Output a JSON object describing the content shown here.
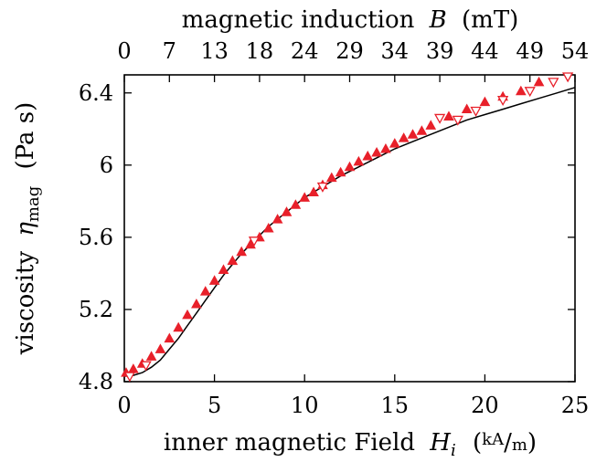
{
  "chart_data": {
    "type": "scatter",
    "title": "",
    "xlabel": "inner magnetic Field",
    "xlabel_symbol": "H",
    "xlabel_subscript": "i",
    "xlabel_unit_open": "(",
    "xlabel_unit_num": "kA",
    "xlabel_unit_sep": "/",
    "xlabel_unit_den": "m",
    "xlabel_unit_close": ")",
    "ylabel": "viscosity",
    "ylabel_symbol": "η",
    "ylabel_subscript": "mag",
    "ylabel_unit": "(Pa s)",
    "x2label": "magnetic induction",
    "x2label_symbol": "B",
    "x2label_unit": "(mT)",
    "xlim": [
      0,
      25
    ],
    "ylim": [
      4.8,
      6.5
    ],
    "xticks": [
      0,
      5,
      10,
      15,
      20,
      25
    ],
    "xtick_labels": [
      "0",
      "5",
      "10",
      "15",
      "20",
      "25"
    ],
    "yticks": [
      4.8,
      5.2,
      5.6,
      6.0,
      6.4
    ],
    "ytick_labels": [
      "4.8",
      "5.2",
      "5.6",
      "6",
      "6.4"
    ],
    "x2tick_labels": [
      "0",
      "7",
      "13",
      "18",
      "24",
      "29",
      "34",
      "39",
      "44",
      "49",
      "54"
    ],
    "x2tick_positions": [
      0,
      2.5,
      5,
      7.5,
      10,
      12.5,
      15,
      17.5,
      20,
      22.5,
      25
    ],
    "series": [
      {
        "name": "filled triangles",
        "marker": "triangle-up-filled",
        "color": "#e8202a",
        "x": [
          0.1,
          0.5,
          1.0,
          1.5,
          2.0,
          2.5,
          3.0,
          3.5,
          4.0,
          4.5,
          5.0,
          5.5,
          6.0,
          6.5,
          7.0,
          7.5,
          8.0,
          8.5,
          9.0,
          9.5,
          10.0,
          10.5,
          11.0,
          11.5,
          12.0,
          12.5,
          13.0,
          13.5,
          14.0,
          14.5,
          15.0,
          15.5,
          16.0,
          16.5,
          17.0,
          18.0,
          19.0,
          20.0,
          21.0,
          22.0,
          23.0
        ],
        "y": [
          4.85,
          4.87,
          4.9,
          4.94,
          4.98,
          5.04,
          5.1,
          5.17,
          5.23,
          5.3,
          5.36,
          5.42,
          5.47,
          5.52,
          5.56,
          5.6,
          5.65,
          5.7,
          5.74,
          5.78,
          5.82,
          5.85,
          5.89,
          5.93,
          5.96,
          5.99,
          6.02,
          6.05,
          6.07,
          6.09,
          6.12,
          6.15,
          6.17,
          6.19,
          6.22,
          6.27,
          6.31,
          6.35,
          6.38,
          6.41,
          6.46
        ]
      },
      {
        "name": "open triangles",
        "marker": "triangle-down-open",
        "color": "#e8202a",
        "x": [
          0.3,
          1.2,
          7.2,
          11.0,
          17.5,
          18.5,
          19.5,
          21.0,
          22.5,
          23.8,
          24.6
        ],
        "y": [
          4.83,
          4.89,
          5.58,
          5.88,
          6.26,
          6.25,
          6.3,
          6.36,
          6.41,
          6.46,
          6.49
        ]
      }
    ],
    "fit": {
      "name": "model curve",
      "color": "#000000",
      "x": [
        0,
        0.5,
        1,
        1.5,
        2,
        2.5,
        3,
        3.5,
        4,
        4.5,
        5,
        5.5,
        6,
        6.5,
        7,
        7.5,
        8,
        8.5,
        9,
        9.5,
        10,
        11,
        12,
        13,
        14,
        15,
        16,
        17,
        18,
        19,
        20,
        21,
        22,
        23,
        24,
        25
      ],
      "y": [
        4.83,
        4.835,
        4.85,
        4.88,
        4.92,
        4.98,
        5.04,
        5.11,
        5.18,
        5.25,
        5.32,
        5.39,
        5.45,
        5.51,
        5.56,
        5.61,
        5.66,
        5.7,
        5.74,
        5.78,
        5.82,
        5.88,
        5.94,
        5.99,
        6.04,
        6.09,
        6.13,
        6.17,
        6.21,
        6.25,
        6.28,
        6.31,
        6.34,
        6.37,
        6.4,
        6.43
      ]
    }
  }
}
